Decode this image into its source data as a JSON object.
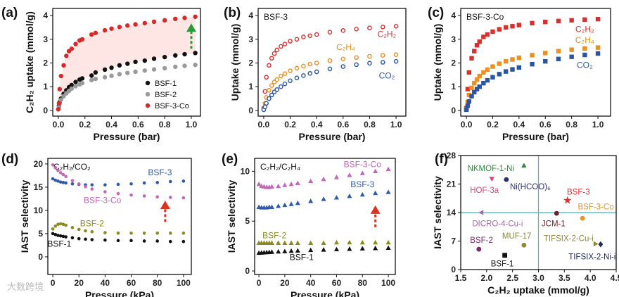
{
  "watermark": "大数跨境",
  "chart_data": [
    {
      "panel": "(a)",
      "type": "scatter",
      "title": "",
      "xlabel": "Pressure (bar)",
      "ylabel": "C₂H₂ uptake (mmol/g)",
      "xlim": [
        -0.042,
        1.069
      ],
      "ylim": [
        -0.24,
        4.3
      ],
      "xticks": [
        "0.0",
        "0.2",
        "0.4",
        "0.6",
        "0.8",
        "1.0"
      ],
      "xtick_values": [
        0,
        0.2,
        0.4,
        0.6,
        0.8,
        1.0
      ],
      "yticks": [
        "0",
        "1",
        "2",
        "3",
        "4"
      ],
      "ytick_values": [
        0,
        1,
        2,
        3,
        4
      ],
      "legend": "bottom-right",
      "x": [
        0,
        0.005,
        0.01,
        0.02,
        0.04,
        0.06,
        0.08,
        0.1,
        0.13,
        0.16,
        0.18,
        0.25,
        0.28,
        0.35,
        0.4,
        0.46,
        0.52,
        0.58,
        0.65,
        0.72,
        0.8,
        0.88,
        0.95,
        1.03
      ],
      "series": [
        {
          "name": "BSF-1",
          "color": "#111111",
          "marker": "circle",
          "values": [
            0.05,
            0.2,
            0.35,
            0.5,
            0.7,
            0.85,
            0.98,
            1.07,
            1.2,
            1.3,
            1.35,
            1.47,
            1.6,
            1.72,
            1.8,
            1.9,
            1.97,
            2.05,
            2.1,
            2.18,
            2.25,
            2.32,
            2.37,
            2.42
          ]
        },
        {
          "name": "BSF-2",
          "color": "#9a9a9a",
          "marker": "circle",
          "values": [
            0.05,
            0.15,
            0.3,
            0.45,
            0.6,
            0.72,
            0.82,
            0.92,
            1.02,
            1.1,
            1.15,
            1.28,
            1.33,
            1.4,
            1.46,
            1.53,
            1.58,
            1.63,
            1.68,
            1.73,
            1.78,
            1.84,
            1.88,
            1.92
          ]
        },
        {
          "name": "BSF-3-Co",
          "color": "#d7282a",
          "marker": "circle",
          "values": [
            0.05,
            0.3,
            0.9,
            1.45,
            1.9,
            2.3,
            2.5,
            2.6,
            2.8,
            2.95,
            3.0,
            3.2,
            3.27,
            3.38,
            3.45,
            3.52,
            3.58,
            3.63,
            3.68,
            3.74,
            3.8,
            3.86,
            3.9,
            3.95
          ]
        }
      ],
      "shade_between": [
        "BSF-1",
        "BSF-3-Co"
      ],
      "shade_color": "#fde6e4",
      "arrow": {
        "color": "#2a9a3a",
        "x": 1.0,
        "from": 2.6,
        "to": 3.55
      }
    },
    {
      "panel": "(b)",
      "type": "scatter",
      "title": "BSF-3",
      "xlabel": "Pressure (bar)",
      "ylabel": "Uptake (mmol/g)",
      "xlim": [
        -0.042,
        1.074
      ],
      "ylim": [
        -0.24,
        4.3
      ],
      "xticks": [
        "0.0",
        "0.2",
        "0.4",
        "0.6",
        "0.8",
        "1.0"
      ],
      "xtick_values": [
        0,
        0.2,
        0.4,
        0.6,
        0.8,
        1.0
      ],
      "yticks": [
        "0",
        "1",
        "2",
        "3",
        "4"
      ],
      "ytick_values": [
        0,
        1,
        2,
        3,
        4
      ],
      "x": [
        0,
        0.01,
        0.02,
        0.04,
        0.06,
        0.08,
        0.1,
        0.13,
        0.16,
        0.2,
        0.25,
        0.3,
        0.35,
        0.4,
        0.5,
        0.6,
        0.7,
        0.8,
        0.9,
        1.0
      ],
      "series": [
        {
          "name": "C₂H₂",
          "color": "#d8302e",
          "marker": "ring",
          "values": [
            0.1,
            0.8,
            1.4,
            1.9,
            2.2,
            2.4,
            2.55,
            2.7,
            2.8,
            2.92,
            3.0,
            3.1,
            3.15,
            3.2,
            3.3,
            3.37,
            3.43,
            3.48,
            3.52,
            3.55
          ],
          "label_at": [
            0.93,
            3.1
          ]
        },
        {
          "name": "C₂H₄",
          "color": "#ef8f1e",
          "marker": "ring",
          "values": [
            0.05,
            0.3,
            0.55,
            0.85,
            1.05,
            1.2,
            1.3,
            1.45,
            1.55,
            1.67,
            1.78,
            1.87,
            1.95,
            2.0,
            2.1,
            2.17,
            2.23,
            2.28,
            2.32,
            2.35
          ],
          "label_at": [
            0.62,
            2.55
          ]
        },
        {
          "name": "CO₂",
          "color": "#2a55a5",
          "marker": "ring",
          "values": [
            0.03,
            0.15,
            0.3,
            0.5,
            0.65,
            0.78,
            0.88,
            1.0,
            1.12,
            1.25,
            1.37,
            1.47,
            1.56,
            1.63,
            1.75,
            1.85,
            1.93,
            1.99,
            2.03,
            2.07
          ],
          "label_at": [
            0.93,
            1.35
          ]
        }
      ]
    },
    {
      "panel": "(c)",
      "type": "scatter",
      "title": "BSF-3-Co",
      "xlabel": "Pressure (bar)",
      "ylabel": "Uptake (mmol/g)",
      "xlim": [
        -0.043,
        1.096
      ],
      "ylim": [
        -0.24,
        4.3
      ],
      "xticks": [
        "0.0",
        "0.2",
        "0.4",
        "0.6",
        "0.8",
        "1.0"
      ],
      "xtick_values": [
        0,
        0.2,
        0.4,
        0.6,
        0.8,
        1.0
      ],
      "yticks": [
        "0",
        "1",
        "2",
        "3",
        "4"
      ],
      "ytick_values": [
        0,
        1,
        2,
        3,
        4
      ],
      "x": [
        0,
        0.01,
        0.02,
        0.04,
        0.06,
        0.08,
        0.1,
        0.13,
        0.16,
        0.2,
        0.25,
        0.3,
        0.35,
        0.4,
        0.5,
        0.6,
        0.7,
        0.8,
        0.9,
        1.0
      ],
      "series": [
        {
          "name": "C₂H₂",
          "color": "#d8302e",
          "marker": "square",
          "values": [
            0.1,
            0.9,
            1.6,
            2.2,
            2.5,
            2.75,
            2.9,
            3.1,
            3.2,
            3.32,
            3.42,
            3.5,
            3.55,
            3.6,
            3.68,
            3.73,
            3.77,
            3.8,
            3.83,
            3.85
          ],
          "label_at": [
            0.9,
            3.3
          ]
        },
        {
          "name": "C₂H₄",
          "color": "#ef8f1e",
          "marker": "square",
          "values": [
            0.05,
            0.35,
            0.65,
            0.95,
            1.15,
            1.3,
            1.45,
            1.6,
            1.72,
            1.85,
            1.97,
            2.07,
            2.15,
            2.22,
            2.33,
            2.42,
            2.5,
            2.56,
            2.61,
            2.65
          ],
          "label_at": [
            0.9,
            2.85
          ]
        },
        {
          "name": "CO₂",
          "color": "#2a55a5",
          "marker": "square",
          "values": [
            0.03,
            0.2,
            0.38,
            0.6,
            0.77,
            0.9,
            1.0,
            1.15,
            1.27,
            1.4,
            1.53,
            1.64,
            1.73,
            1.81,
            1.95,
            2.07,
            2.17,
            2.26,
            2.34,
            2.4
          ],
          "label_at": [
            0.9,
            1.8
          ]
        }
      ]
    },
    {
      "panel": "(d)",
      "type": "line",
      "title": "C₂H₂/CO₂",
      "xlabel": "Pressure (kPa)",
      "ylabel": "IAST selectivity",
      "xlim": [
        -3.8,
        106
      ],
      "ylim": [
        -3.8,
        21.2
      ],
      "xticks": [
        "0",
        "20",
        "40",
        "60",
        "80",
        "100"
      ],
      "xtick_values": [
        0,
        20,
        40,
        60,
        80,
        100
      ],
      "yticks": [
        "0",
        "5",
        "10",
        "15",
        "20"
      ],
      "ytick_values": [
        0,
        5,
        10,
        15,
        20
      ],
      "x": [
        0,
        2,
        4,
        6,
        8,
        10,
        15,
        20,
        25,
        30,
        40,
        50,
        60,
        70,
        80,
        90,
        100
      ],
      "series": [
        {
          "name": "BSF-3",
          "color": "#2f5aa8",
          "marker": "dot",
          "values": [
            16.8,
            16.5,
            16.3,
            16.1,
            16.0,
            15.9,
            15.7,
            15.6,
            15.5,
            15.5,
            15.5,
            15.6,
            15.7,
            15.9,
            16.0,
            16.2,
            16.3
          ],
          "label_at": [
            82,
            17.6
          ]
        },
        {
          "name": "BSF-3-Co",
          "color": "#c266b8",
          "marker": "dot",
          "values": [
            19.8,
            19.2,
            18.6,
            18.1,
            17.7,
            17.3,
            16.4,
            15.7,
            15.1,
            14.6,
            14.0,
            13.6,
            13.3,
            13.1,
            12.9,
            12.8,
            12.7
          ],
          "label_at": [
            38,
            11.6
          ]
        },
        {
          "name": "BSF-2",
          "color": "#8a8a1e",
          "marker": "dot",
          "values": [
            6.0,
            6.6,
            7.0,
            7.1,
            7.0,
            6.8,
            6.3,
            5.9,
            5.6,
            5.4,
            5.2,
            5.1,
            5.1,
            5.1,
            5.1,
            5.1,
            5.1
          ],
          "label_at": [
            30,
            6.6
          ]
        },
        {
          "name": "BSF-1",
          "color": "#111111",
          "marker": "dot",
          "values": [
            5.0,
            4.8,
            4.6,
            4.5,
            4.4,
            4.3,
            4.1,
            3.9,
            3.8,
            3.7,
            3.6,
            3.5,
            3.5,
            3.4,
            3.4,
            3.3,
            3.3
          ],
          "label_at": [
            5,
            2.2
          ]
        }
      ],
      "arrow": {
        "color": "#e0301e",
        "x": 86,
        "from": 7.5,
        "to": 11.5,
        "dashed": true
      }
    },
    {
      "panel": "(e)",
      "type": "line",
      "title": "C₂H₂/C₂H₄",
      "xlabel": "Pressure (kPa)",
      "ylabel": "IAST selectivity",
      "xlim": [
        -3.3,
        105.4
      ],
      "ylim": [
        -0.35,
        11.3
      ],
      "xticks": [
        "0",
        "20",
        "40",
        "60",
        "80",
        "100"
      ],
      "xtick_values": [
        0,
        20,
        40,
        60,
        80,
        100
      ],
      "yticks": [
        "0",
        "5",
        "10"
      ],
      "ytick_values": [
        0,
        5,
        10
      ],
      "x": [
        0,
        2,
        4,
        6,
        8,
        10,
        15,
        20,
        25,
        30,
        40,
        50,
        60,
        70,
        80,
        90,
        100
      ],
      "series": [
        {
          "name": "BSF-3-Co",
          "color": "#c266b8",
          "marker": "triangle",
          "values": [
            8.7,
            8.5,
            8.45,
            8.4,
            8.4,
            8.45,
            8.5,
            8.6,
            8.7,
            8.8,
            9.0,
            9.2,
            9.4,
            9.6,
            9.8,
            10.0,
            10.2
          ],
          "label_at": [
            80,
            10.4
          ]
        },
        {
          "name": "BSF-3",
          "color": "#2f5aa8",
          "marker": "triangle",
          "values": [
            6.4,
            6.35,
            6.35,
            6.35,
            6.4,
            6.4,
            6.5,
            6.6,
            6.7,
            6.8,
            7.0,
            7.2,
            7.35,
            7.5,
            7.65,
            7.8,
            7.9
          ],
          "label_at": [
            80,
            8.4
          ]
        },
        {
          "name": "BSF-2",
          "color": "#8a8a1e",
          "marker": "triangle",
          "values": [
            2.8,
            2.8,
            2.8,
            2.8,
            2.8,
            2.8,
            2.8,
            2.8,
            2.8,
            2.8,
            2.8,
            2.8,
            2.85,
            2.85,
            2.85,
            2.85,
            2.85
          ],
          "label_at": [
            12,
            3.3
          ]
        },
        {
          "name": "BSF-1",
          "color": "#111111",
          "marker": "triangle",
          "values": [
            1.8,
            1.82,
            1.84,
            1.86,
            1.88,
            1.9,
            1.93,
            1.96,
            2.0,
            2.03,
            2.08,
            2.12,
            2.16,
            2.2,
            2.24,
            2.27,
            2.3
          ],
          "label_at": [
            33,
            1.1
          ]
        }
      ],
      "arrow": {
        "color": "#e0301e",
        "x": 90,
        "from": 4.4,
        "to": 6.3,
        "dashed": true
      }
    },
    {
      "panel": "(f)",
      "type": "scatter",
      "title": "",
      "xlabel": "C₂H₂ uptake (mmol/g)",
      "ylabel": "IAST selectivity",
      "xlim": [
        1.5,
        4.5
      ],
      "ylim": [
        0,
        28
      ],
      "xticks": [
        "1.5",
        "2.0",
        "2.5",
        "3.0",
        "3.5",
        "4.0",
        "4.5"
      ],
      "xtick_values": [
        1.5,
        2.0,
        2.5,
        3.0,
        3.5,
        4.0,
        4.5
      ],
      "yticks": [
        "0",
        "7",
        "14",
        "21",
        "28"
      ],
      "ytick_values": [
        0,
        7,
        14,
        21,
        28
      ],
      "reference_lines": {
        "x": 3.0,
        "y": 14,
        "color": "#3bb8c4"
      },
      "points": [
        {
          "name": "NKMOF-1-Ni",
          "x": 2.72,
          "y": 25.5,
          "color": "#2e8a3e",
          "marker": "triangle",
          "label_at": [
            1.63,
            24.2
          ]
        },
        {
          "name": "HOF-3a",
          "x": 2.1,
          "y": 22.3,
          "color": "#e0427a",
          "marker": "tri-down",
          "label_at": [
            1.68,
            18.8
          ]
        },
        {
          "name": "Ni(HCOO)₆",
          "x": 2.38,
          "y": 22.1,
          "color": "#2a2f6a",
          "marker": "circle",
          "label_at": [
            2.45,
            19.7
          ]
        },
        {
          "name": "BSF-3",
          "x": 3.56,
          "y": 17.0,
          "color": "#e0302e",
          "marker": "star",
          "label_at": [
            3.55,
            18.4
          ]
        },
        {
          "name": "BSF-3-Co",
          "x": 3.85,
          "y": 12.6,
          "color": "#ef8f30",
          "marker": "circle",
          "label_at": [
            3.76,
            14.8
          ]
        },
        {
          "name": "DICRO-4-Cu-i",
          "x": 1.9,
          "y": 14.0,
          "color": "#a46aaa",
          "marker": "tri-left",
          "label_at": [
            1.72,
            10.6
          ]
        },
        {
          "name": "JCM-1",
          "x": 3.35,
          "y": 13.8,
          "color": "#6a1e2a",
          "marker": "circle",
          "label_at": [
            3.06,
            10.6
          ]
        },
        {
          "name": "TIFSIX-2-Cu-i",
          "x": 4.1,
          "y": 6.3,
          "color": "#8a8a3a",
          "marker": "tri-right",
          "label_at": [
            3.1,
            7.0
          ]
        },
        {
          "name": "TIFSIX-2-Ni-i",
          "x": 4.2,
          "y": 6.2,
          "color": "#222a5a",
          "marker": "diamond",
          "label_at": [
            3.58,
            2.5
          ]
        },
        {
          "name": "BSF-2",
          "x": 1.85,
          "y": 5.0,
          "color": "#7a2a6a",
          "marker": "circle",
          "label_at": [
            1.68,
            6.6
          ]
        },
        {
          "name": "MUF-17",
          "x": 2.72,
          "y": 6.0,
          "color": "#8a8a3a",
          "marker": "circle",
          "label_at": [
            2.3,
            7.6
          ]
        },
        {
          "name": "BSF-1",
          "x": 2.35,
          "y": 3.5,
          "color": "#111111",
          "marker": "square",
          "label_at": [
            2.08,
            0.8
          ]
        }
      ]
    }
  ]
}
